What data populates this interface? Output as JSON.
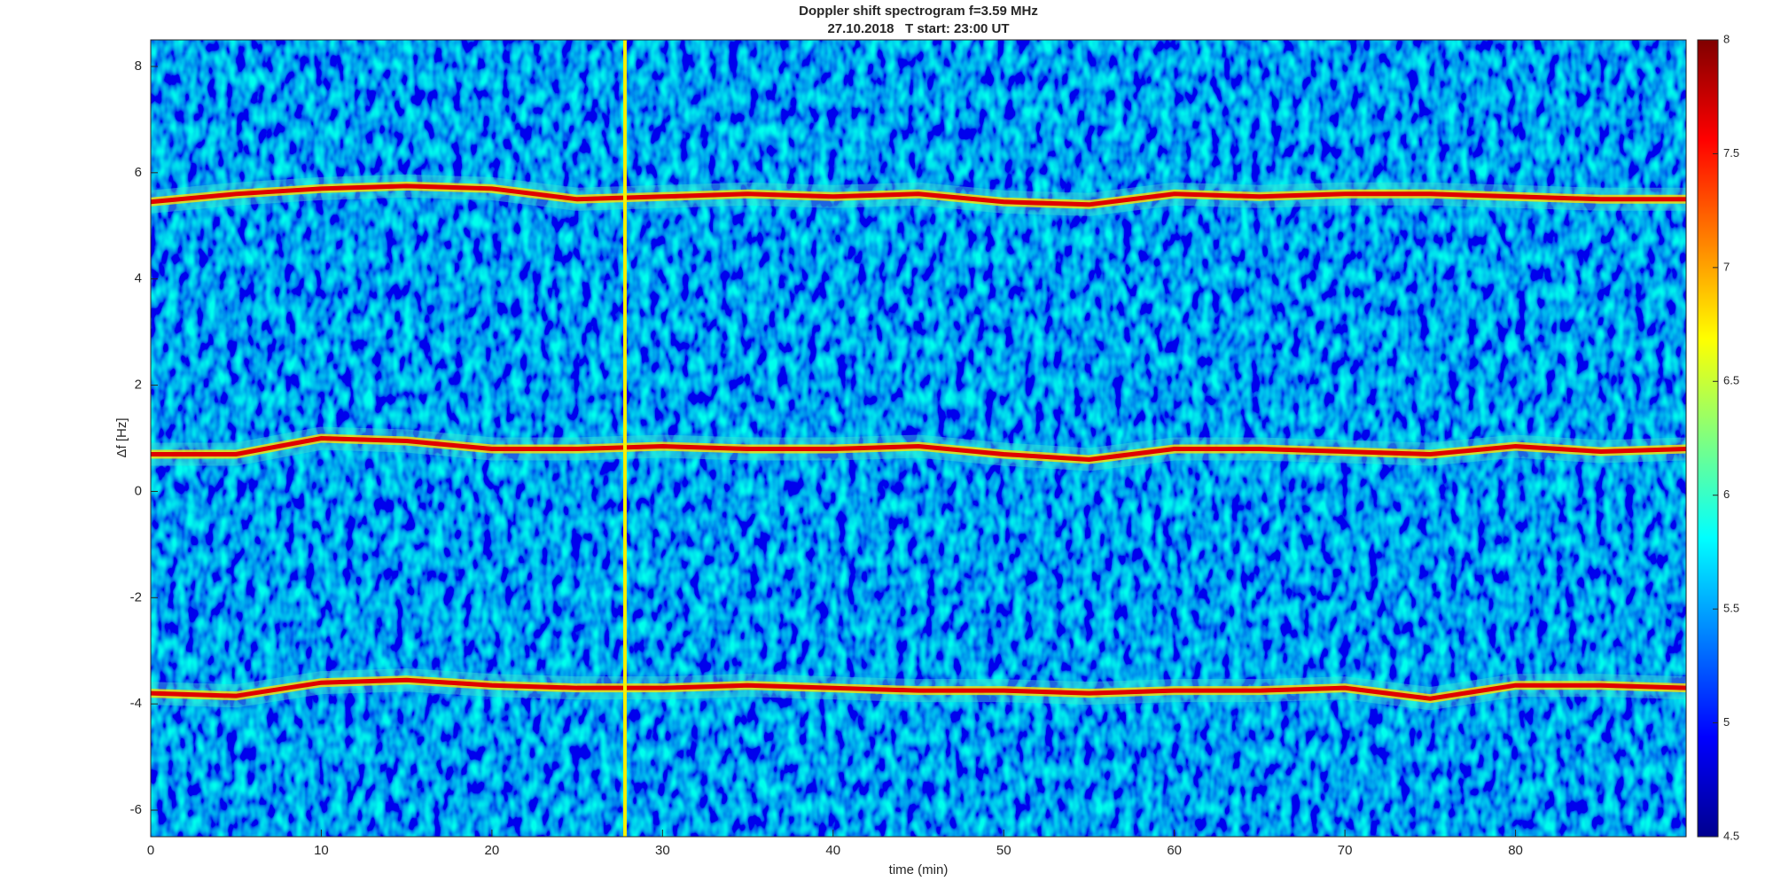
{
  "chart_data": {
    "type": "spectrogram",
    "title": "Doppler shift spectrogram f=3.59 MHz",
    "subtitle": "27.10.2018   T start: 23:00 UT",
    "x_label": "time (min)",
    "y_label": "Δf [Hz]",
    "xlim": [
      0,
      90
    ],
    "xticks": [
      0,
      10,
      20,
      30,
      40,
      50,
      60,
      70,
      80
    ],
    "ylim": [
      -6.5,
      8.5
    ],
    "yticks": [
      -6,
      -4,
      -2,
      0,
      2,
      4,
      6,
      8
    ],
    "colormap": "jet",
    "clim": [
      4.5,
      8
    ],
    "cticks": [
      4.5,
      5,
      5.5,
      6,
      6.5,
      7,
      7.5,
      8
    ],
    "x": [
      0,
      5,
      10,
      15,
      20,
      25,
      30,
      35,
      40,
      45,
      50,
      55,
      60,
      65,
      70,
      75,
      80,
      85,
      90
    ],
    "series": [
      {
        "color": "#e00000",
        "values": [
          5.45,
          5.6,
          5.7,
          5.75,
          5.7,
          5.5,
          5.55,
          5.6,
          5.55,
          5.6,
          5.45,
          5.4,
          5.6,
          5.55,
          5.6,
          5.6,
          5.55,
          5.5,
          5.5
        ]
      },
      {
        "color": "#e00000",
        "values": [
          0.7,
          0.7,
          1.0,
          0.95,
          0.8,
          0.8,
          0.85,
          0.8,
          0.8,
          0.85,
          0.7,
          0.6,
          0.8,
          0.8,
          0.75,
          0.7,
          0.85,
          0.75,
          0.8
        ]
      },
      {
        "color": "#e00000",
        "values": [
          -3.8,
          -3.85,
          -3.6,
          -3.55,
          -3.65,
          -3.7,
          -3.7,
          -3.65,
          -3.7,
          -3.75,
          -3.75,
          -3.8,
          -3.75,
          -3.75,
          -3.7,
          -3.9,
          -3.65,
          -3.65,
          -3.7
        ]
      }
    ],
    "vlines": [
      27.8
    ]
  }
}
